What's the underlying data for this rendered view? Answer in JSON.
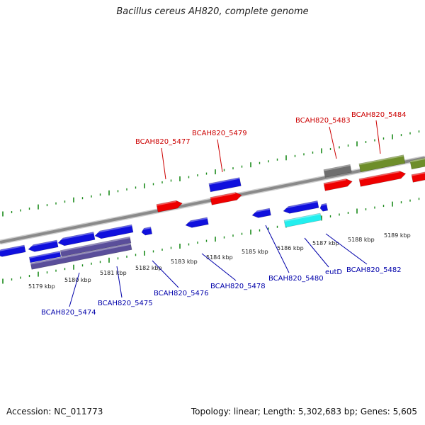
{
  "title": "Bacillus cereus AH820, complete genome",
  "footer": {
    "accession": "Accession: NC_011773",
    "summary": "Topology: linear; Length: 5,302,683 bp; Genes: 5,605"
  },
  "colors": {
    "backbone": "#8a8a8a",
    "tick": "#1a8a1a",
    "label_top": "#cc0000",
    "label_bottom": "#0000aa",
    "gene_red": "#ee0000",
    "gene_blue": "#1010dd",
    "gene_gray": "#6e6e6e",
    "gene_olive": "#6e8e2a",
    "gene_cyan": "#22eeee",
    "gene_slate": "#5a4e9a"
  },
  "ruler": {
    "unit": "kbp",
    "labels": [
      "5179 kbp",
      "5180 kbp",
      "5181 kbp",
      "5182 kbp",
      "5183 kbp",
      "5184 kbp",
      "5185 kbp",
      "5186 kbp",
      "5187 kbp",
      "5188 kbp",
      "5189 kbp"
    ]
  },
  "gene_labels_top": [
    "BCAH820_5477",
    "BCAH820_5479",
    "BCAH820_5483",
    "BCAH820_5484"
  ],
  "gene_labels_bottom": [
    "BCAH820_5474",
    "BCAH820_5475",
    "BCAH820_5476",
    "BCAH820_5478",
    "BCAH820_5480",
    "eutD",
    "BCAH820_5482"
  ]
}
